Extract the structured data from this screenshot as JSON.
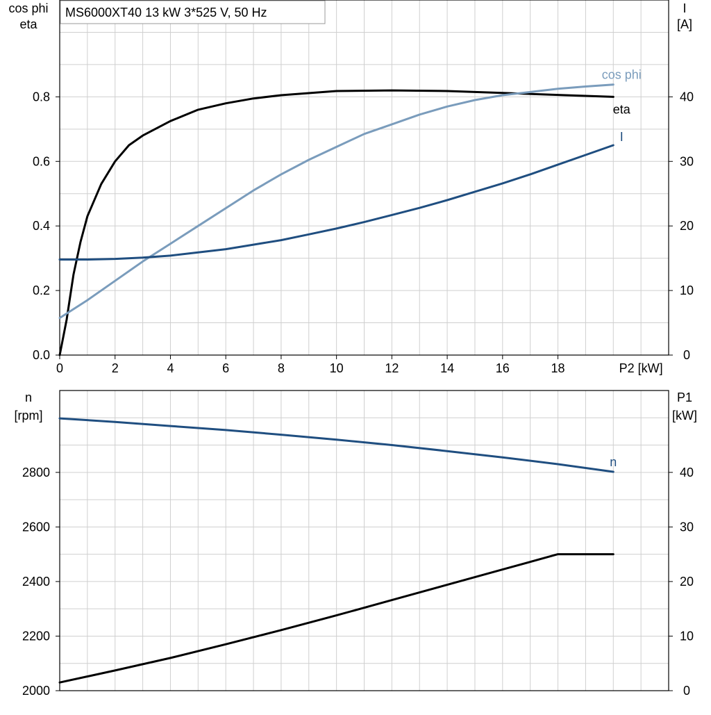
{
  "chart_data": [
    {
      "type": "line",
      "title": "MS6000XT40   13 kW   3*525 V, 50 Hz",
      "xlabel": "P2 [kW]",
      "ylabel_left": [
        "cos phi",
        "eta"
      ],
      "ylabel_right": [
        "I",
        "[A]"
      ],
      "xlim": [
        0,
        22
      ],
      "xticks": [
        0,
        2,
        4,
        6,
        8,
        10,
        12,
        14,
        16,
        18
      ],
      "ylim_left": [
        0,
        1.0
      ],
      "yticks_left": [
        "0.0",
        "0.2",
        "0.4",
        "0.6",
        "0.8"
      ],
      "ylim_right": [
        0,
        50
      ],
      "yticks_right": [
        "0",
        "10",
        "20",
        "30",
        "40"
      ],
      "grid": true,
      "series": [
        {
          "name": "eta",
          "axis": "left",
          "color": "#000000",
          "x": [
            0,
            0.25,
            0.5,
            0.75,
            1,
            1.5,
            2,
            2.5,
            3,
            4,
            5,
            6,
            7,
            8,
            10,
            12,
            14,
            16,
            18,
            20
          ],
          "y": [
            0.0,
            0.11,
            0.25,
            0.35,
            0.43,
            0.53,
            0.6,
            0.65,
            0.68,
            0.725,
            0.76,
            0.78,
            0.795,
            0.805,
            0.818,
            0.82,
            0.818,
            0.812,
            0.806,
            0.8
          ]
        },
        {
          "name": "cos phi",
          "axis": "left",
          "color": "#7a9cbc",
          "x": [
            0,
            1,
            2,
            3,
            4,
            5,
            6,
            7,
            8,
            9,
            10,
            11,
            12,
            13,
            14,
            15,
            16,
            17,
            18,
            19,
            20
          ],
          "y": [
            0.115,
            0.17,
            0.23,
            0.29,
            0.345,
            0.4,
            0.455,
            0.51,
            0.56,
            0.605,
            0.645,
            0.685,
            0.715,
            0.745,
            0.77,
            0.79,
            0.805,
            0.815,
            0.825,
            0.832,
            0.838
          ]
        },
        {
          "name": "I",
          "axis": "right",
          "color": "#1f4e80",
          "x": [
            0,
            1,
            2,
            3,
            4,
            5,
            6,
            7,
            8,
            9,
            10,
            11,
            12,
            13,
            14,
            15,
            16,
            17,
            18,
            19,
            20
          ],
          "y": [
            14.8,
            14.8,
            14.9,
            15.1,
            15.4,
            15.9,
            16.4,
            17.1,
            17.8,
            18.7,
            19.6,
            20.6,
            21.7,
            22.8,
            24.0,
            25.3,
            26.6,
            28.0,
            29.5,
            31.0,
            32.5
          ]
        }
      ]
    },
    {
      "type": "line",
      "ylabel_left": [
        "n",
        "[rpm]"
      ],
      "ylabel_right": [
        "P1",
        "[kW]"
      ],
      "xlim": [
        0,
        22
      ],
      "ylim_left": [
        2000,
        3000
      ],
      "yticks_left": [
        "2000",
        "2200",
        "2400",
        "2600",
        "2800"
      ],
      "ylim_right": [
        0,
        50
      ],
      "yticks_right": [
        "0",
        "10",
        "20",
        "30",
        "40"
      ],
      "grid": true,
      "series": [
        {
          "name": "n",
          "axis": "left",
          "color": "#1f4e80",
          "x": [
            0,
            2,
            4,
            6,
            8,
            10,
            12,
            14,
            16,
            18,
            20
          ],
          "y": [
            2998,
            2985,
            2970,
            2955,
            2938,
            2920,
            2900,
            2878,
            2855,
            2830,
            2802
          ]
        },
        {
          "axis": "right",
          "color": "#000000",
          "x": [
            0,
            2,
            4,
            6,
            8,
            10,
            12,
            14,
            16,
            18,
            20
          ],
          "y": [
            1.5,
            3.7,
            6.0,
            8.5,
            11.1,
            13.8,
            16.6,
            19.4,
            22.2,
            25.0,
            25.0
          ]
        }
      ]
    }
  ]
}
